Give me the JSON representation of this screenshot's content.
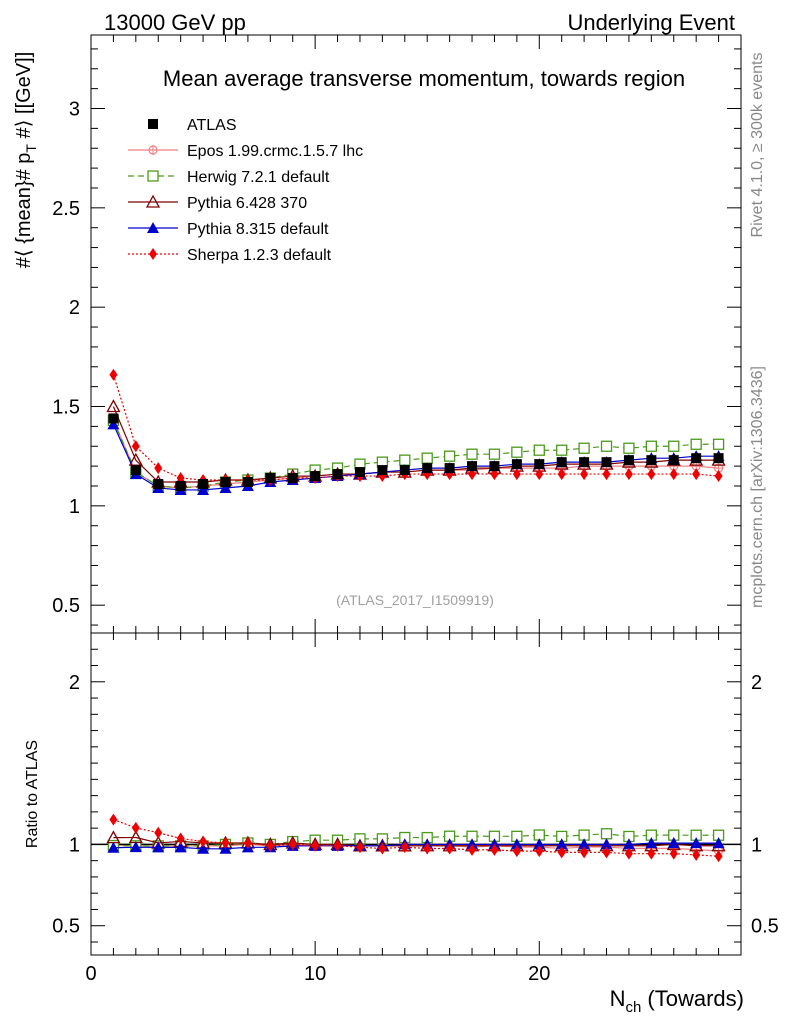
{
  "header": {
    "left": "13000 GeV pp",
    "right": "Underlying Event"
  },
  "side": {
    "rivet": "Rivet 4.1.0, ≥ 300k events",
    "mcplots": "mcplots.cern.ch [arXiv:1306.3436]"
  },
  "chart_data": {
    "type": "line",
    "title": "Mean average transverse momentum, towards region",
    "analysis": "(ATLAS_2017_I1509919)",
    "ylabel": "#⟨ {mean}# p_T #⟩ [[GeV]]",
    "ylabel_parts": {
      "main": "#⟨ {mean}# p",
      "sub": "T",
      "tail": " #⟩ [[GeV]]"
    },
    "xlabel_parts": {
      "main": "N",
      "sub": "ch",
      "tail": " (Towards)"
    },
    "ratio_ylabel": "Ratio to ATLAS",
    "xlim": [
      0,
      29
    ],
    "ylim": [
      0.36,
      3.37
    ],
    "ratio_ylim": [
      0.32,
      2.3
    ],
    "x_ticks": [
      0,
      10,
      20
    ],
    "y_ticks": [
      0.5,
      1,
      1.5,
      2,
      2.5,
      3
    ],
    "y_tick_labels": [
      "0.5",
      "1",
      "1.5",
      "2",
      "2.5",
      "3"
    ],
    "ratio_ticks": [
      0.5,
      1,
      2
    ],
    "ratio_tick_labels": [
      "0.5",
      "1",
      "2"
    ],
    "x": [
      1,
      2,
      3,
      4,
      5,
      6,
      7,
      8,
      9,
      10,
      11,
      12,
      13,
      14,
      15,
      16,
      17,
      18,
      19,
      20,
      21,
      22,
      23,
      24,
      25,
      26,
      27,
      28
    ],
    "series": [
      {
        "name": "ATLAS",
        "color": "#000000",
        "marker": "square-filled",
        "dash": "none",
        "values": [
          1.44,
          1.18,
          1.11,
          1.1,
          1.11,
          1.12,
          1.12,
          1.14,
          1.14,
          1.15,
          1.16,
          1.17,
          1.18,
          1.18,
          1.19,
          1.19,
          1.2,
          1.2,
          1.21,
          1.21,
          1.22,
          1.22,
          1.22,
          1.23,
          1.23,
          1.23,
          1.24,
          1.24
        ]
      },
      {
        "name": "Epos 1.99.crmc.1.5.7 lhc",
        "color": "#f08080",
        "marker": "circle-cross",
        "dash": "solid",
        "values": [
          1.43,
          1.17,
          1.1,
          1.09,
          1.1,
          1.11,
          1.12,
          1.13,
          1.14,
          1.15,
          1.16,
          1.16,
          1.17,
          1.17,
          1.18,
          1.18,
          1.18,
          1.19,
          1.19,
          1.19,
          1.19,
          1.2,
          1.2,
          1.2,
          1.2,
          1.2,
          1.2,
          1.19
        ]
      },
      {
        "name": "Herwig 7.2.1 default",
        "color": "#4a9a1a",
        "marker": "square-open",
        "dash": "dashed",
        "values": [
          1.43,
          1.17,
          1.1,
          1.09,
          1.1,
          1.12,
          1.13,
          1.14,
          1.16,
          1.18,
          1.19,
          1.21,
          1.22,
          1.23,
          1.24,
          1.25,
          1.26,
          1.26,
          1.27,
          1.28,
          1.28,
          1.29,
          1.3,
          1.29,
          1.3,
          1.3,
          1.31,
          1.31
        ]
      },
      {
        "name": "Pythia 6.428 370",
        "color": "#800000",
        "marker": "triangle-open",
        "dash": "solid",
        "values": [
          1.5,
          1.23,
          1.12,
          1.12,
          1.12,
          1.13,
          1.13,
          1.14,
          1.15,
          1.15,
          1.16,
          1.16,
          1.17,
          1.17,
          1.18,
          1.18,
          1.19,
          1.19,
          1.2,
          1.2,
          1.21,
          1.21,
          1.21,
          1.22,
          1.22,
          1.23,
          1.23,
          1.23
        ]
      },
      {
        "name": "Pythia 8.315 default",
        "color": "#0000cc",
        "marker": "triangle-filled",
        "dash": "solid",
        "values": [
          1.41,
          1.16,
          1.09,
          1.08,
          1.08,
          1.09,
          1.1,
          1.12,
          1.13,
          1.14,
          1.15,
          1.16,
          1.17,
          1.18,
          1.19,
          1.19,
          1.2,
          1.2,
          1.21,
          1.21,
          1.22,
          1.22,
          1.22,
          1.23,
          1.24,
          1.24,
          1.25,
          1.25
        ]
      },
      {
        "name": "Sherpa 1.2.3 default",
        "color": "#ee0000",
        "marker": "diamond-filled",
        "dash": "dotted",
        "values": [
          1.66,
          1.3,
          1.19,
          1.14,
          1.13,
          1.13,
          1.13,
          1.13,
          1.14,
          1.14,
          1.15,
          1.15,
          1.15,
          1.16,
          1.16,
          1.16,
          1.16,
          1.16,
          1.16,
          1.16,
          1.16,
          1.16,
          1.16,
          1.16,
          1.16,
          1.16,
          1.16,
          1.15
        ]
      }
    ]
  }
}
